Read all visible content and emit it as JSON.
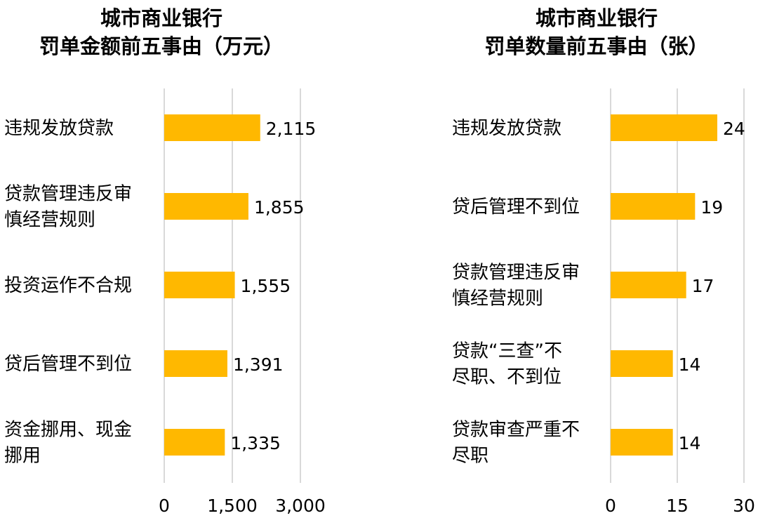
{
  "chart_data": [
    {
      "type": "bar",
      "orientation": "horizontal",
      "title_line1": "城市商业银行",
      "title_line2": "罚单金额前五事由（万元）",
      "categories": [
        "违规发放贷款",
        "贷款管理违反审慎经营规则",
        "投资运作不合规",
        "贷后管理不到位",
        "资金挪用、现金挪用"
      ],
      "category_lines": [
        [
          "违规发放贷款"
        ],
        [
          "贷款管理违反审",
          "慎经营规则"
        ],
        [
          "投资运作不合规"
        ],
        [
          "贷后管理不到位"
        ],
        [
          "资金挪用、现金",
          "挪用"
        ]
      ],
      "values": [
        2115,
        1855,
        1555,
        1391,
        1335
      ],
      "value_labels": [
        "2,115",
        "1,855",
        "1,555",
        "1,391",
        "1,335"
      ],
      "xlim": [
        0,
        3000
      ],
      "ticks": [
        0,
        1500,
        3000
      ],
      "tick_labels": [
        "0",
        "1,500",
        "3,000"
      ],
      "grid": true,
      "bar_color": "#FFB800",
      "grid_color": "#D9D9D9"
    },
    {
      "type": "bar",
      "orientation": "horizontal",
      "title_line1": "城市商业银行",
      "title_line2": "罚单数量前五事由（张）",
      "categories": [
        "违规发放贷款",
        "贷后管理不到位",
        "贷款管理违反审慎经营规则",
        "贷款“三查”不尽职、不到位",
        "贷款审查严重不尽职"
      ],
      "category_lines": [
        [
          "违规发放贷款"
        ],
        [
          "贷后管理不到位"
        ],
        [
          "贷款管理违反审",
          "慎经营规则"
        ],
        [
          "贷款“三查”不",
          "尽职、不到位"
        ],
        [
          "贷款审查严重不",
          "尽职"
        ]
      ],
      "values": [
        24,
        19,
        17,
        14,
        14
      ],
      "value_labels": [
        "24",
        "19",
        "17",
        "14",
        "14"
      ],
      "xlim": [
        0,
        30
      ],
      "ticks": [
        0,
        15,
        30
      ],
      "tick_labels": [
        "0",
        "15",
        "30"
      ],
      "grid": true,
      "bar_color": "#FFB800",
      "grid_color": "#D9D9D9"
    }
  ]
}
